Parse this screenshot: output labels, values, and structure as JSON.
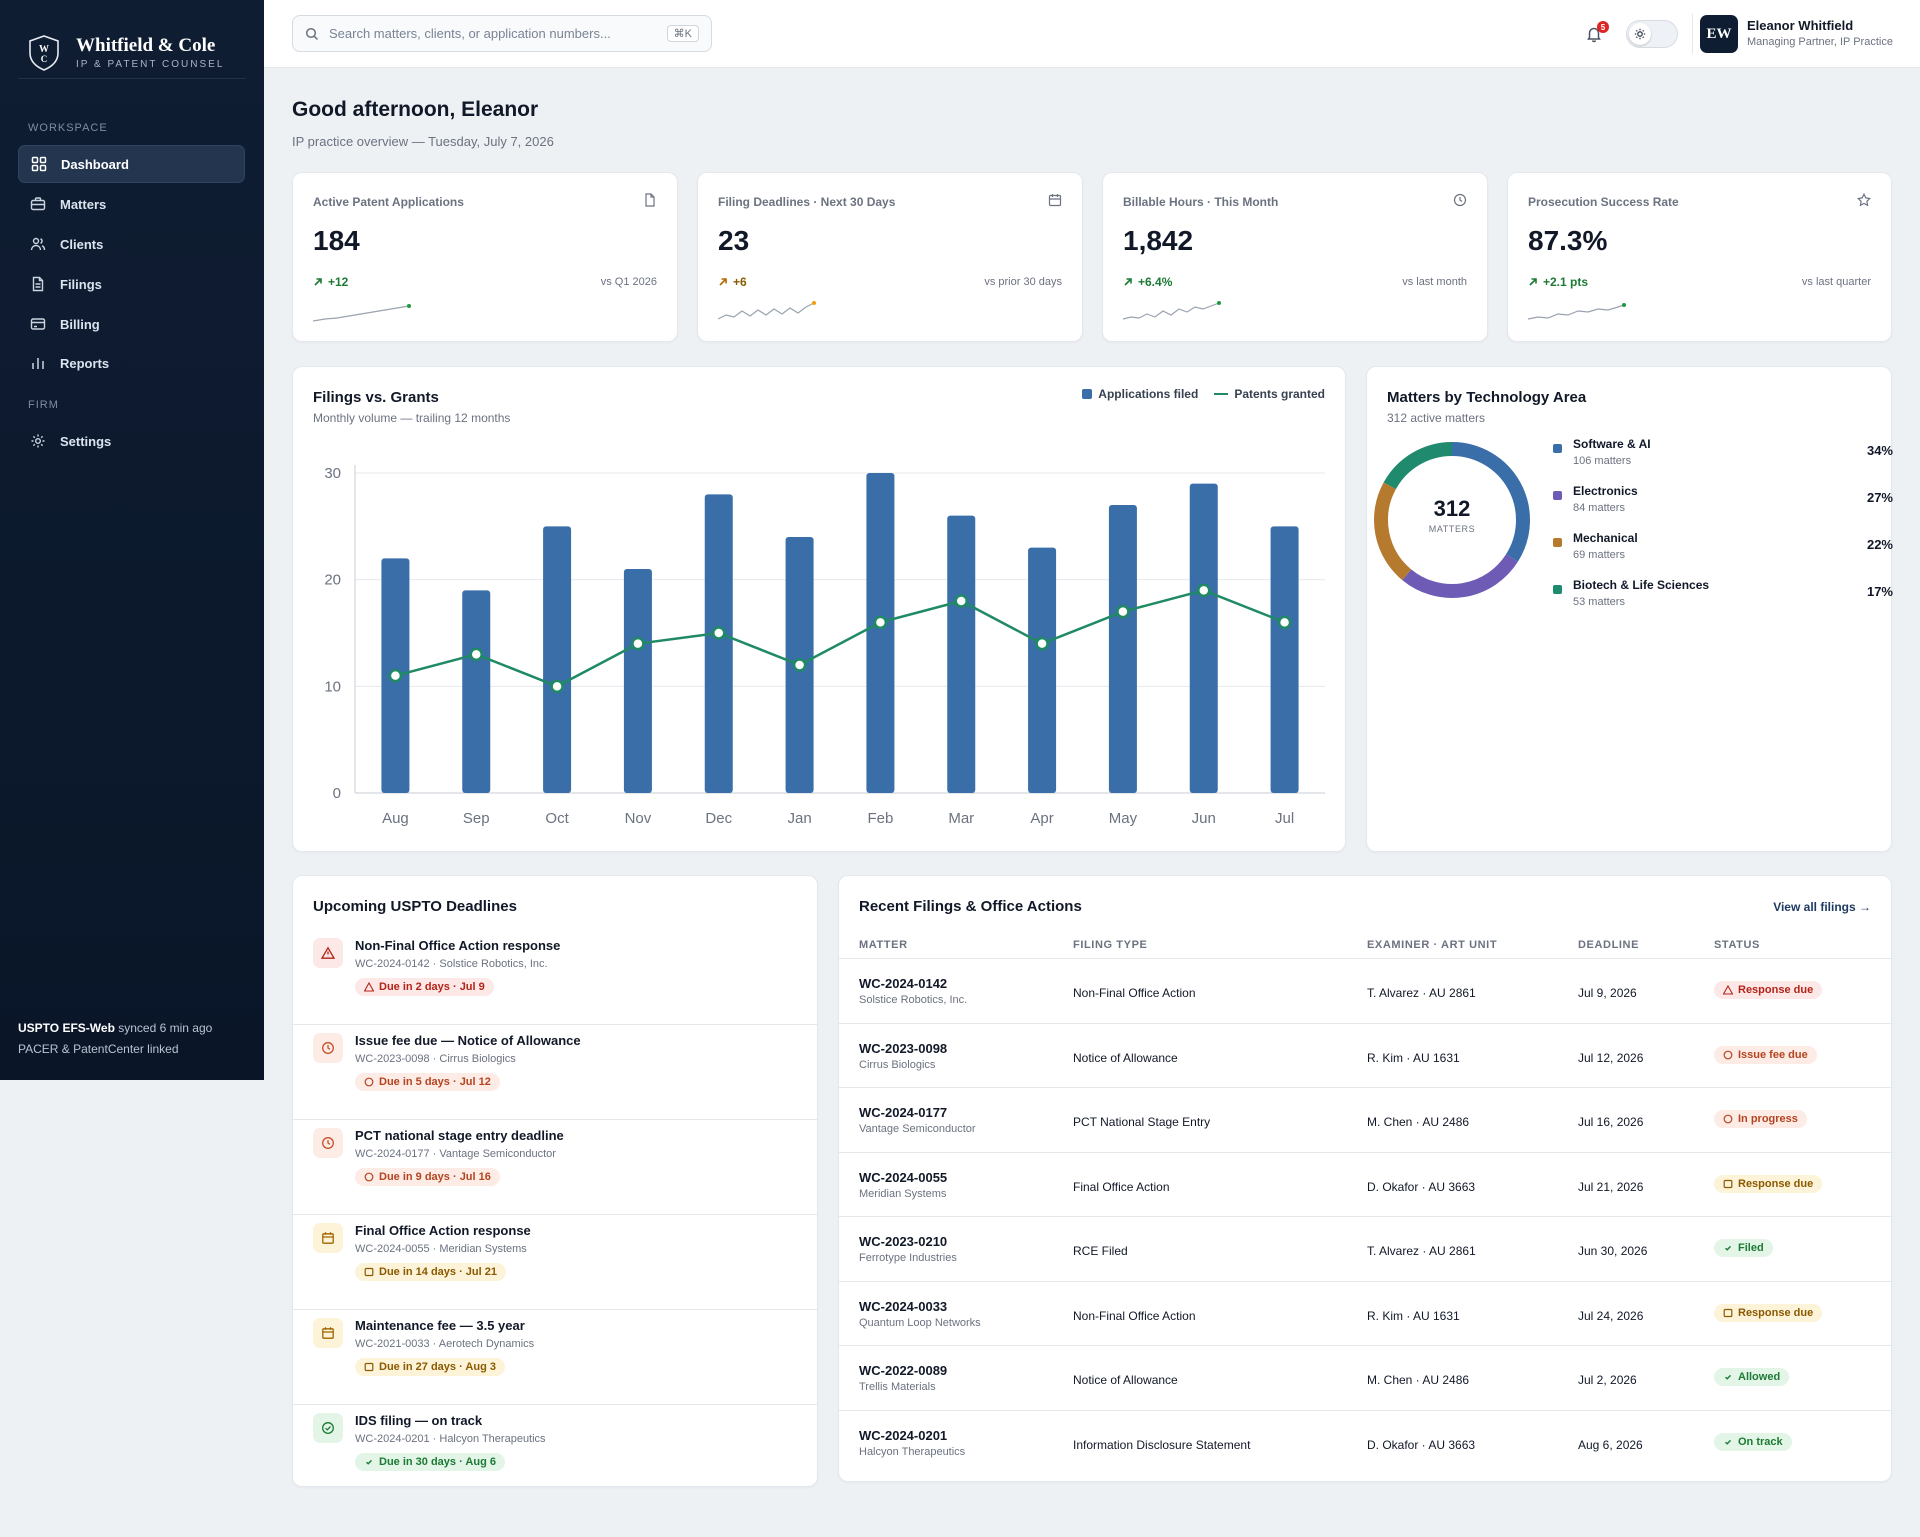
{
  "brand": {
    "name": "Whitfield & Cole",
    "subtitle": "IP & PATENT COUNSEL",
    "logo_letters": "WC"
  },
  "sidebar": {
    "section_workspace": "WORKSPACE",
    "section_firm": "FIRM",
    "items": [
      {
        "label": "Dashboard",
        "icon": "grid-icon",
        "active": true
      },
      {
        "label": "Matters",
        "icon": "briefcase-icon"
      },
      {
        "label": "Clients",
        "icon": "users-icon"
      },
      {
        "label": "Filings",
        "icon": "document-icon"
      },
      {
        "label": "Billing",
        "icon": "credit-card-icon"
      },
      {
        "label": "Reports",
        "icon": "bar-chart-icon"
      },
      {
        "label": "Settings",
        "icon": "gear-icon"
      }
    ],
    "sync_source": "USPTO EFS-Web",
    "sync_status": "synced 6 min ago",
    "sync_linked": "PACER & PatentCenter linked"
  },
  "topbar": {
    "search_placeholder": "Search matters, clients, or application numbers...",
    "search_shortcut": "⌘K",
    "notification_count": "5",
    "user_initials": "EW",
    "user_name": "Eleanor Whitfield",
    "user_role": "Managing Partner, IP Practice"
  },
  "greeting": {
    "title": "Good afternoon, Eleanor",
    "subtitle": "IP practice overview — Tuesday, July 7, 2026"
  },
  "kpis": [
    {
      "label": "Active Patent Applications",
      "value": "184",
      "delta": "+12",
      "compare": "vs Q1 2026",
      "icon": "document-icon",
      "trend": "up",
      "color": "#1d7a35"
    },
    {
      "label": "Filing Deadlines · Next 30 Days",
      "value": "23",
      "delta": "+6",
      "compare": "vs prior 30 days",
      "icon": "calendar-icon",
      "trend": "up",
      "color": "#8a5a00"
    },
    {
      "label": "Billable Hours · This Month",
      "value": "1,842",
      "delta": "+6.4%",
      "compare": "vs last month",
      "icon": "clock-icon",
      "trend": "up",
      "color": "#1d7a35"
    },
    {
      "label": "Prosecution Success Rate",
      "value": "87.3%",
      "delta": "+2.1 pts",
      "compare": "vs last quarter",
      "icon": "star-icon",
      "trend": "up",
      "color": "#1d7a35"
    }
  ],
  "chart_data": {
    "type": "bar",
    "title": "Filings vs. Grants",
    "subtitle": "Monthly volume — trailing 12 months",
    "categories": [
      "Aug",
      "Sep",
      "Oct",
      "Nov",
      "Dec",
      "Jan",
      "Feb",
      "Mar",
      "Apr",
      "May",
      "Jun",
      "Jul"
    ],
    "series": [
      {
        "name": "Applications filed",
        "type": "bar",
        "color": "#3a6ea8",
        "values": [
          22,
          19,
          25,
          21,
          28,
          24,
          30,
          26,
          23,
          27,
          29,
          25
        ]
      },
      {
        "name": "Patents granted",
        "type": "line",
        "color": "#1f8a64",
        "values": [
          11,
          13,
          10,
          14,
          15,
          12,
          16,
          18,
          14,
          17,
          19,
          16
        ]
      }
    ],
    "ylim": [
      0,
      30
    ],
    "yticks": [
      0,
      10,
      20,
      30
    ],
    "grid": true,
    "legend": "top-right"
  },
  "tech_area": {
    "title": "Matters by Technology Area",
    "subtitle": "312 active matters",
    "center_value": "312",
    "center_label": "MATTERS",
    "items": [
      {
        "name": "Software & AI",
        "count": "106 matters",
        "pct": "34%",
        "share": 34,
        "color": "#3a6ea8"
      },
      {
        "name": "Electronics",
        "count": "84 matters",
        "pct": "27%",
        "share": 27,
        "color": "#6d5bb5"
      },
      {
        "name": "Mechanical",
        "count": "69 matters",
        "pct": "22%",
        "share": 22,
        "color": "#b57a2e"
      },
      {
        "name": "Biotech & Life Sciences",
        "count": "53 matters",
        "pct": "17%",
        "share": 17,
        "color": "#1f8a6e"
      }
    ]
  },
  "deadlines": {
    "title": "Upcoming USPTO Deadlines",
    "items": [
      {
        "title": "Non-Final Office Action response",
        "meta": "WC-2024-0142 · Solstice Robotics, Inc.",
        "due": "Due in 2 days · Jul 9",
        "tone": "red",
        "icon": "alert-triangle-icon"
      },
      {
        "title": "Issue fee due — Notice of Allowance",
        "meta": "WC-2023-0098 · Cirrus Biologics",
        "due": "Due in 5 days · Jul 12",
        "tone": "orange",
        "icon": "clock-icon"
      },
      {
        "title": "PCT national stage entry deadline",
        "meta": "WC-2024-0177 · Vantage Semiconductor",
        "due": "Due in 9 days · Jul 16",
        "tone": "orange",
        "icon": "clock-icon"
      },
      {
        "title": "Final Office Action response",
        "meta": "WC-2024-0055 · Meridian Systems",
        "due": "Due in 14 days · Jul 21",
        "tone": "amber",
        "icon": "calendar-icon"
      },
      {
        "title": "Maintenance fee — 3.5 year",
        "meta": "WC-2021-0033 · Aerotech Dynamics",
        "due": "Due in 27 days · Aug 3",
        "tone": "amber",
        "icon": "calendar-icon"
      },
      {
        "title": "IDS filing — on track",
        "meta": "WC-2024-0201 · Halcyon Therapeutics",
        "due": "Due in 30 days · Aug 6",
        "tone": "green",
        "icon": "check-circle-icon"
      }
    ]
  },
  "filings": {
    "title": "Recent Filings & Office Actions",
    "view_all": "View all filings →",
    "columns": [
      "MATTER",
      "FILING TYPE",
      "EXAMINER · ART UNIT",
      "DEADLINE",
      "STATUS"
    ],
    "rows": [
      {
        "matter": "WC-2024-0142",
        "client": "Solstice Robotics, Inc.",
        "type": "Non-Final Office Action",
        "examiner": "T. Alvarez · AU 2861",
        "deadline": "Jul 9, 2026",
        "status": "Response due",
        "tone": "red",
        "status_icon": "alert-triangle-icon"
      },
      {
        "matter": "WC-2023-0098",
        "client": "Cirrus Biologics",
        "type": "Notice of Allowance",
        "examiner": "R. Kim · AU 1631",
        "deadline": "Jul 12, 2026",
        "status": "Issue fee due",
        "tone": "orange",
        "status_icon": "circle-icon"
      },
      {
        "matter": "WC-2024-0177",
        "client": "Vantage Semiconductor",
        "type": "PCT National Stage Entry",
        "examiner": "M. Chen · AU 2486",
        "deadline": "Jul 16, 2026",
        "status": "In progress",
        "tone": "orange",
        "status_icon": "circle-icon"
      },
      {
        "matter": "WC-2024-0055",
        "client": "Meridian Systems",
        "type": "Final Office Action",
        "examiner": "D. Okafor · AU 3663",
        "deadline": "Jul 21, 2026",
        "status": "Response due",
        "tone": "amber",
        "status_icon": "square-icon"
      },
      {
        "matter": "WC-2023-0210",
        "client": "Ferrotype Industries",
        "type": "RCE Filed",
        "examiner": "T. Alvarez · AU 2861",
        "deadline": "Jun 30, 2026",
        "status": "Filed",
        "tone": "green",
        "status_icon": "check-icon"
      },
      {
        "matter": "WC-2024-0033",
        "client": "Quantum Loop Networks",
        "type": "Non-Final Office Action",
        "examiner": "R. Kim · AU 1631",
        "deadline": "Jul 24, 2026",
        "status": "Response due",
        "tone": "amber",
        "status_icon": "square-icon"
      },
      {
        "matter": "WC-2022-0089",
        "client": "Trellis Materials",
        "type": "Notice of Allowance",
        "examiner": "M. Chen · AU 2486",
        "deadline": "Jul 2, 2026",
        "status": "Allowed",
        "tone": "green",
        "status_icon": "check-icon"
      },
      {
        "matter": "WC-2024-0201",
        "client": "Halcyon Therapeutics",
        "type": "Information Disclosure Statement",
        "examiner": "D. Okafor · AU 3663",
        "deadline": "Aug 6, 2026",
        "status": "On track",
        "tone": "green",
        "status_icon": "check-icon"
      }
    ]
  }
}
